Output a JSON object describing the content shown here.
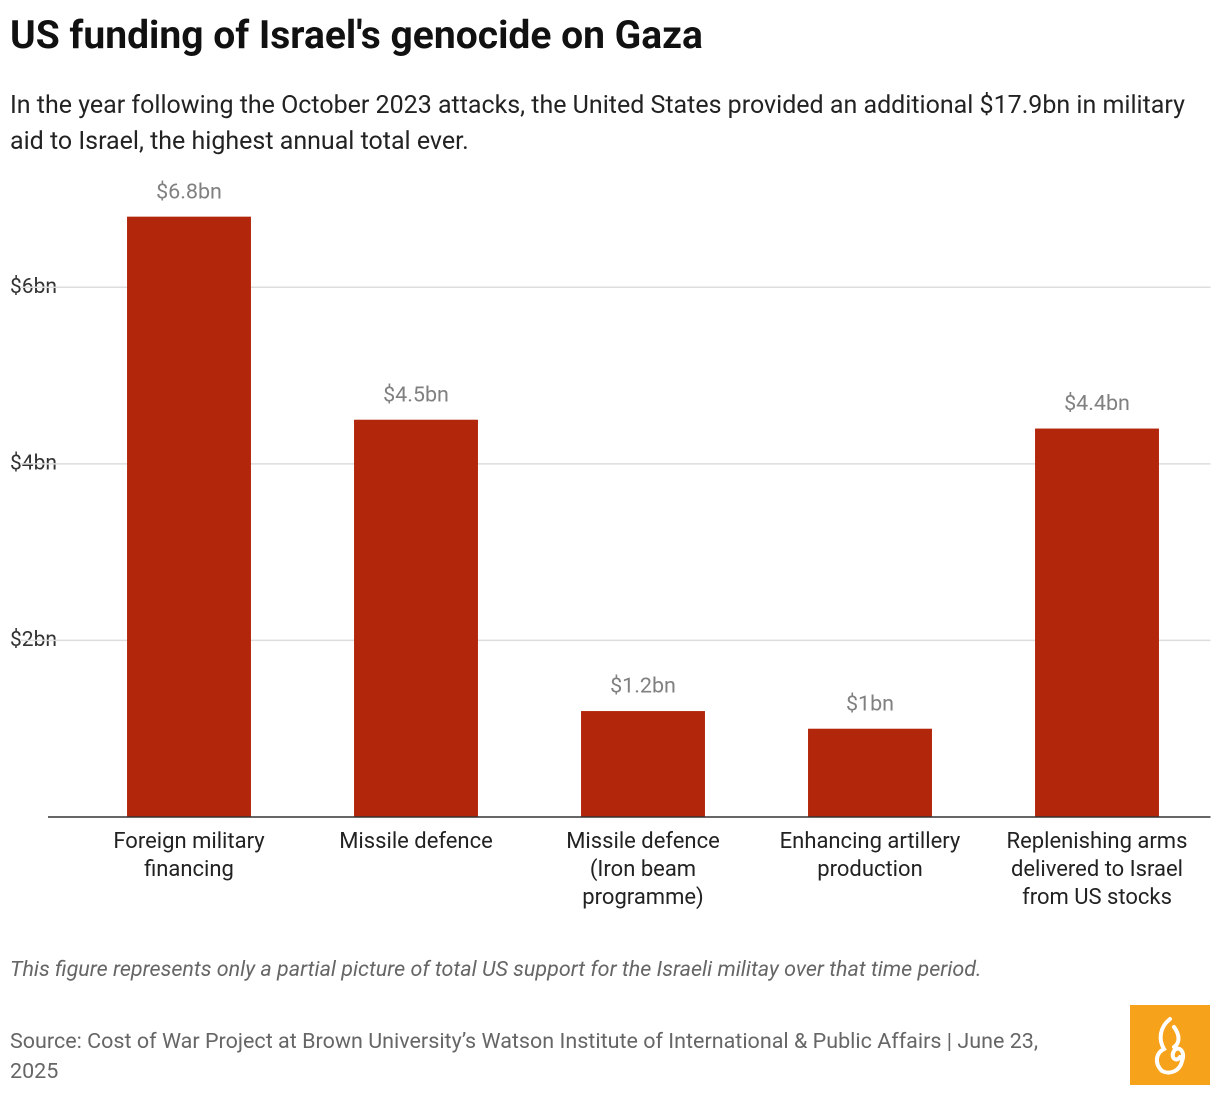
{
  "chart_data": {
    "type": "bar",
    "title": "US funding of Israel's genocide on Gaza",
    "subtitle": "In the year following the October 2023 attacks, the United States provided an additional $17.9bn in military aid to Israel, the highest annual total ever.",
    "categories": [
      "Foreign military financing",
      "Missile defence",
      "Missile defence (Iron beam programme)",
      "Enhancing artillery production",
      "Replenishing arms delivered to Israel from US stocks"
    ],
    "values": [
      6.8,
      4.5,
      1.2,
      1,
      4.4
    ],
    "value_labels": [
      "$6.8bn",
      "$4.5bn",
      "$1.2bn",
      "$1bn",
      "$4.4bn"
    ],
    "color": "#b2270b",
    "ylim": [
      0,
      7
    ],
    "yticks": [
      {
        "value": 2,
        "label": "$2bn"
      },
      {
        "value": 4,
        "label": "$4bn"
      },
      {
        "value": 6,
        "label": "$6bn"
      }
    ],
    "grid": true,
    "note": "This figure represents only a partial picture of total US support for the Israeli militay over that time period.",
    "source": "Source: Cost of War Project at Brown University’s Watson Institute of International & Public Affairs | June 23, 2025"
  }
}
